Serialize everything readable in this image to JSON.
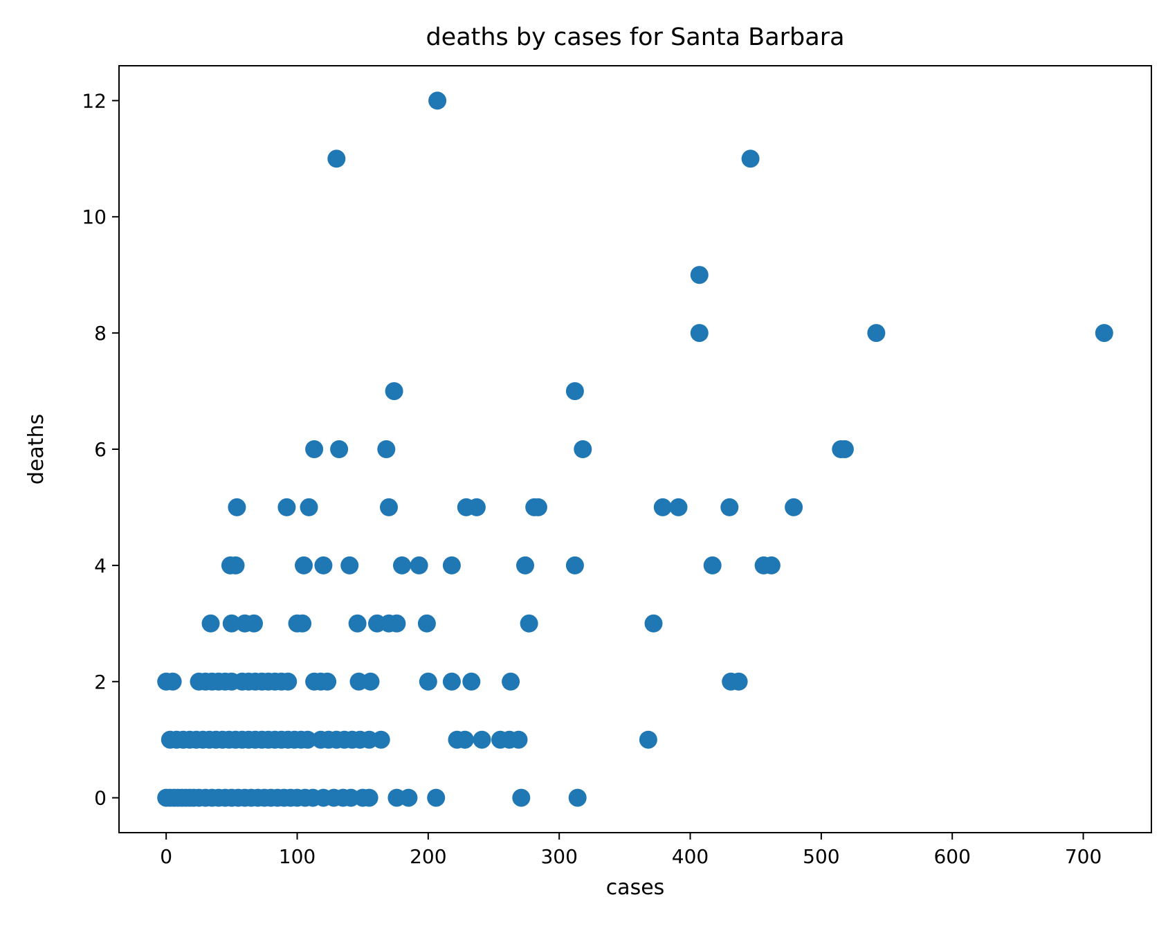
{
  "chart_data": {
    "type": "scatter",
    "title": "deaths by cases for Santa Barbara",
    "xlabel": "cases",
    "ylabel": "deaths",
    "xlim": [
      -36,
      752
    ],
    "ylim": [
      -0.6,
      12.6
    ],
    "xticks": [
      0,
      100,
      200,
      300,
      400,
      500,
      600,
      700
    ],
    "yticks": [
      0,
      2,
      4,
      6,
      8,
      10,
      12
    ],
    "grid": false,
    "color": "#1f77b4",
    "series": [
      {
        "points": [
          [
            0,
            0
          ],
          [
            3,
            0
          ],
          [
            6,
            0
          ],
          [
            9,
            0
          ],
          [
            12,
            0
          ],
          [
            15,
            0
          ],
          [
            18,
            0
          ],
          [
            21,
            0
          ],
          [
            25,
            0
          ],
          [
            30,
            0
          ],
          [
            35,
            0
          ],
          [
            40,
            0
          ],
          [
            45,
            0
          ],
          [
            50,
            0
          ],
          [
            55,
            0
          ],
          [
            60,
            0
          ],
          [
            65,
            0
          ],
          [
            70,
            0
          ],
          [
            75,
            0
          ],
          [
            80,
            0
          ],
          [
            85,
            0
          ],
          [
            90,
            0
          ],
          [
            95,
            0
          ],
          [
            100,
            0
          ],
          [
            106,
            0
          ],
          [
            112,
            0
          ],
          [
            120,
            0
          ],
          [
            128,
            0
          ],
          [
            135,
            0
          ],
          [
            141,
            0
          ],
          [
            150,
            0
          ],
          [
            155,
            0
          ],
          [
            176,
            0
          ],
          [
            185,
            0
          ],
          [
            206,
            0
          ],
          [
            271,
            0
          ],
          [
            314,
            0
          ],
          [
            3,
            1
          ],
          [
            8,
            1
          ],
          [
            13,
            1
          ],
          [
            18,
            1
          ],
          [
            23,
            1
          ],
          [
            28,
            1
          ],
          [
            33,
            1
          ],
          [
            38,
            1
          ],
          [
            43,
            1
          ],
          [
            48,
            1
          ],
          [
            53,
            1
          ],
          [
            58,
            1
          ],
          [
            63,
            1
          ],
          [
            68,
            1
          ],
          [
            73,
            1
          ],
          [
            78,
            1
          ],
          [
            83,
            1
          ],
          [
            88,
            1
          ],
          [
            93,
            1
          ],
          [
            98,
            1
          ],
          [
            103,
            1
          ],
          [
            108,
            1
          ],
          [
            118,
            1
          ],
          [
            124,
            1
          ],
          [
            130,
            1
          ],
          [
            136,
            1
          ],
          [
            142,
            1
          ],
          [
            148,
            1
          ],
          [
            155,
            1
          ],
          [
            164,
            1
          ],
          [
            222,
            1
          ],
          [
            228,
            1
          ],
          [
            241,
            1
          ],
          [
            255,
            1
          ],
          [
            262,
            1
          ],
          [
            269,
            1
          ],
          [
            368,
            1
          ],
          [
            0,
            2
          ],
          [
            5,
            2
          ],
          [
            25,
            2
          ],
          [
            30,
            2
          ],
          [
            35,
            2
          ],
          [
            40,
            2
          ],
          [
            45,
            2
          ],
          [
            50,
            2
          ],
          [
            58,
            2
          ],
          [
            63,
            2
          ],
          [
            68,
            2
          ],
          [
            73,
            2
          ],
          [
            78,
            2
          ],
          [
            83,
            2
          ],
          [
            88,
            2
          ],
          [
            93,
            2
          ],
          [
            113,
            2
          ],
          [
            118,
            2
          ],
          [
            123,
            2
          ],
          [
            147,
            2
          ],
          [
            156,
            2
          ],
          [
            200,
            2
          ],
          [
            218,
            2
          ],
          [
            233,
            2
          ],
          [
            263,
            2
          ],
          [
            431,
            2
          ],
          [
            437,
            2
          ],
          [
            34,
            3
          ],
          [
            50,
            3
          ],
          [
            60,
            3
          ],
          [
            67,
            3
          ],
          [
            100,
            3
          ],
          [
            104,
            3
          ],
          [
            146,
            3
          ],
          [
            161,
            3
          ],
          [
            170,
            3
          ],
          [
            176,
            3
          ],
          [
            199,
            3
          ],
          [
            277,
            3
          ],
          [
            372,
            3
          ],
          [
            49,
            4
          ],
          [
            53,
            4
          ],
          [
            105,
            4
          ],
          [
            120,
            4
          ],
          [
            140,
            4
          ],
          [
            180,
            4
          ],
          [
            193,
            4
          ],
          [
            218,
            4
          ],
          [
            274,
            4
          ],
          [
            312,
            4
          ],
          [
            417,
            4
          ],
          [
            456,
            4
          ],
          [
            462,
            4
          ],
          [
            54,
            5
          ],
          [
            92,
            5
          ],
          [
            109,
            5
          ],
          [
            170,
            5
          ],
          [
            229,
            5
          ],
          [
            237,
            5
          ],
          [
            281,
            5
          ],
          [
            284,
            5
          ],
          [
            379,
            5
          ],
          [
            391,
            5
          ],
          [
            430,
            5
          ],
          [
            479,
            5
          ],
          [
            113,
            6
          ],
          [
            132,
            6
          ],
          [
            168,
            6
          ],
          [
            318,
            6
          ],
          [
            515,
            6
          ],
          [
            518,
            6
          ],
          [
            174,
            7
          ],
          [
            312,
            7
          ],
          [
            407,
            8
          ],
          [
            542,
            8
          ],
          [
            716,
            8
          ],
          [
            407,
            9
          ],
          [
            130,
            11
          ],
          [
            446,
            11
          ],
          [
            207,
            12
          ]
        ]
      }
    ]
  }
}
